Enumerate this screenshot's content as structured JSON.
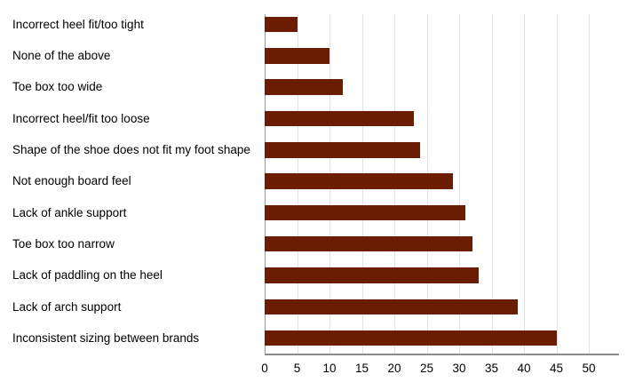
{
  "figure": {
    "background": "#ffffff"
  },
  "chart_data": {
    "type": "bar",
    "orientation": "horizontal",
    "title": "",
    "xlabel": "",
    "ylabel": "",
    "categories": [
      "Incorrect heel fit/too tight",
      "None of the above",
      "Toe box too wide",
      "Incorrect heel/fit too loose",
      "Shape of the shoe does not fit my foot shape",
      "Not enough board feel",
      "Lack of ankle support",
      "Toe box too narrow",
      "Lack of paddling on the heel",
      "Lack of arch support",
      "Inconsistent sizing between brands"
    ],
    "values": [
      5,
      10,
      12,
      23,
      24,
      29,
      31,
      32,
      33,
      39,
      45
    ],
    "xticks": [
      0,
      5,
      10,
      15,
      20,
      25,
      30,
      35,
      40,
      45,
      50
    ],
    "xlim": [
      0,
      54.6
    ],
    "grid": true,
    "legend": "none",
    "colors": {
      "bar": "#6A1D02",
      "gridline": "#e3e3e3",
      "zero_gridline": "#9a9a9a",
      "axis_line": "#8a8a8a",
      "label_text": "#000000",
      "tick_text": "#000000"
    }
  }
}
